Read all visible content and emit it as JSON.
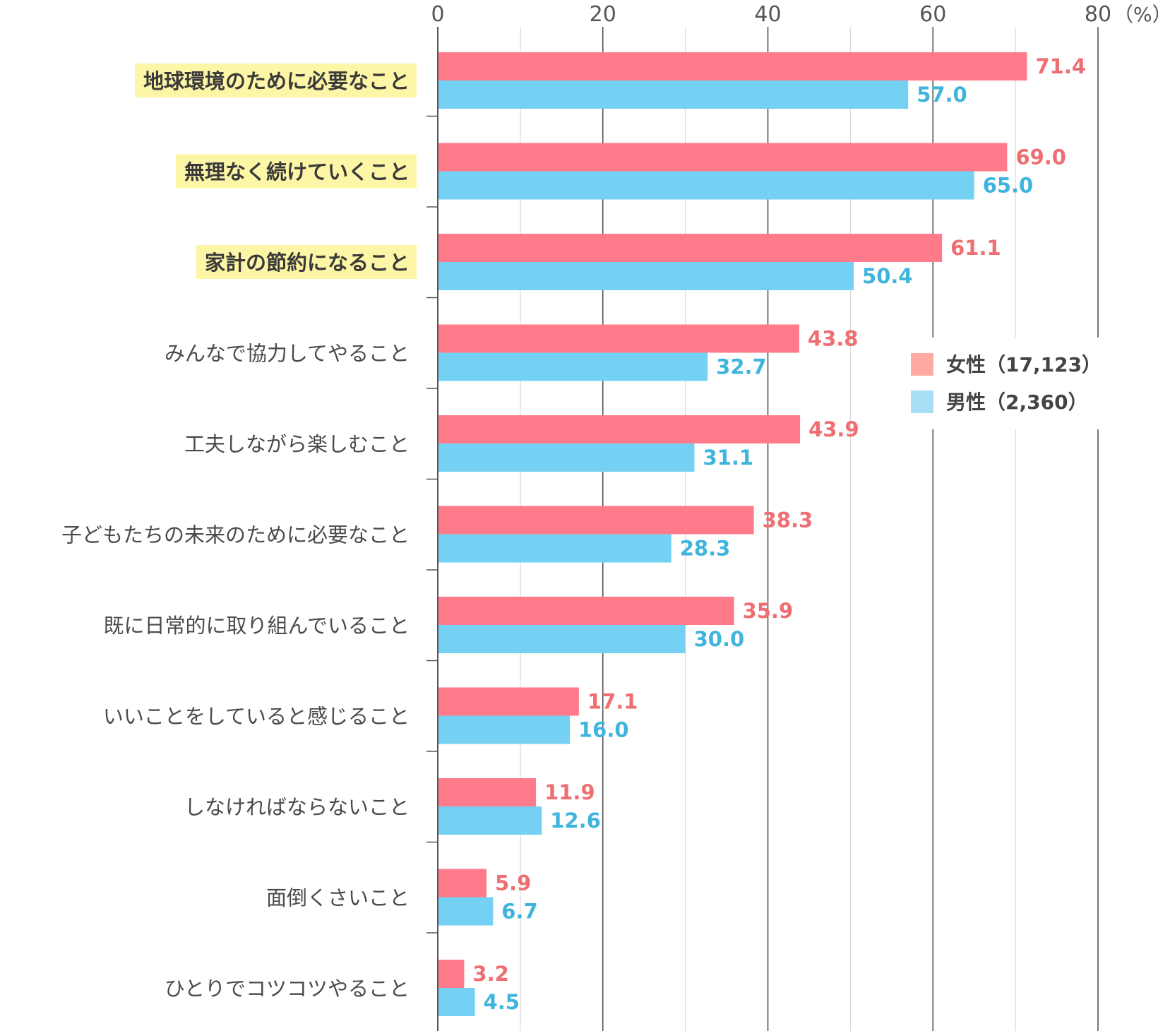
{
  "chart_data": {
    "type": "bar",
    "orientation": "horizontal",
    "categories": [
      "地球環境のために必要なこと",
      "無理なく続けていくこと",
      "家計の節約になること",
      "みんなで協力してやること",
      "工夫しながら楽しむこと",
      "子どもたちの未来のために必要なこと",
      "既に日常的に取り組んでいること",
      "いいことをしていると感じること",
      "しなければならないこと",
      "面倒くさいこと",
      "ひとりでコツコツやること"
    ],
    "highlighted": [
      true,
      true,
      true,
      false,
      false,
      false,
      false,
      false,
      false,
      false,
      false
    ],
    "series": [
      {
        "name": "女性（17,123）",
        "color": "#ff7a8a",
        "label_color": "#ee6e72",
        "values": [
          71.4,
          69.0,
          61.1,
          43.8,
          43.9,
          38.3,
          35.9,
          17.1,
          11.9,
          5.9,
          3.2
        ],
        "labels": [
          "71.4",
          "69.0",
          "61.1",
          "43.8",
          "43.9",
          "38.3",
          "35.9",
          "17.1",
          "11.9",
          "5.9",
          "3.2"
        ]
      },
      {
        "name": "男性（2,360）",
        "color": "#74d1f3",
        "label_color": "#3fb4dc",
        "values": [
          57.0,
          65.0,
          50.4,
          32.7,
          31.1,
          28.3,
          30.0,
          16.0,
          12.6,
          6.7,
          4.5
        ],
        "labels": [
          "57.0",
          "65.0",
          "50.4",
          "32.7",
          "31.1",
          "28.3",
          "30.0",
          "16.0",
          "12.6",
          "6.7",
          "4.5"
        ]
      }
    ],
    "x_ticks": [
      "0",
      "20",
      "40",
      "60",
      "80"
    ],
    "x_unit": "（%）",
    "xlim": [
      0,
      80
    ],
    "legend": {
      "placement": "right-middle",
      "female_swatch": "#ffaaa0",
      "male_swatch": "#a6def6"
    },
    "highlight_color": "#fdf6a6",
    "grid": true
  }
}
